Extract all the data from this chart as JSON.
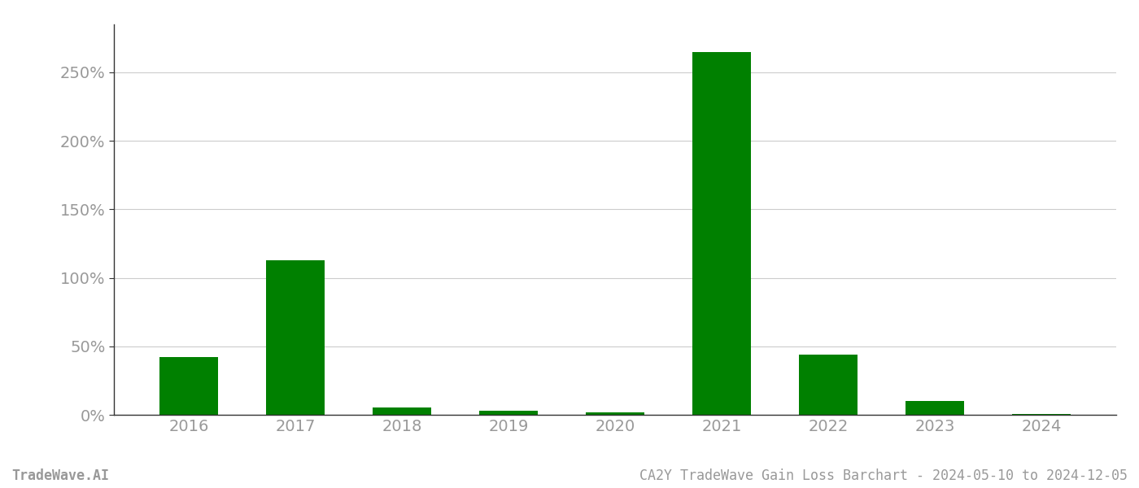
{
  "categories": [
    "2016",
    "2017",
    "2018",
    "2019",
    "2020",
    "2021",
    "2022",
    "2023",
    "2024"
  ],
  "values": [
    0.42,
    1.13,
    0.055,
    0.03,
    0.015,
    2.65,
    0.44,
    0.1,
    0.005
  ],
  "bar_color": "#008000",
  "background_color": "#ffffff",
  "grid_color": "#cccccc",
  "tick_label_color": "#999999",
  "bottom_left_text": "TradeWave.AI",
  "bottom_right_text": "CA2Y TradeWave Gain Loss Barchart - 2024-05-10 to 2024-12-05",
  "bottom_text_color": "#999999",
  "ylim_max": 2.85,
  "ytick_values": [
    0.0,
    0.5,
    1.0,
    1.5,
    2.0,
    2.5
  ],
  "ytick_labels": [
    "0%",
    "50%",
    "100%",
    "150%",
    "200%",
    "250%"
  ],
  "bar_width": 0.55
}
